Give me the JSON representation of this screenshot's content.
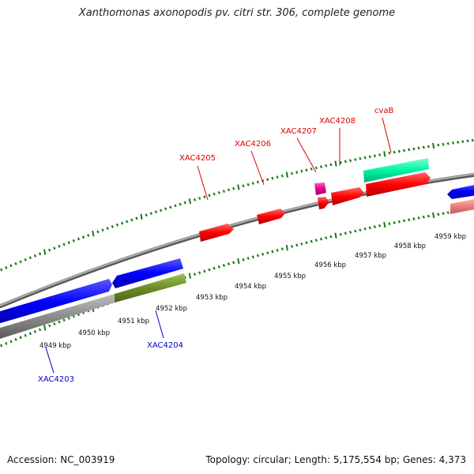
{
  "title": "Xanthomonas axonopodis pv. citri str. 306, complete genome",
  "accession": "Accession: NC_003919",
  "summary": "Topology: circular; Length: 5,175,554 bp; Genes: 4,373",
  "colors": {
    "forward_gene": "#ff0000",
    "reverse_gene": "#0000ff",
    "forward_label": "#dd0000",
    "reverse_label": "#0000cc",
    "tick": "#1a7a1a",
    "backbone": "#888888"
  },
  "kbp_ticks": [
    "4949 kbp",
    "4950 kbp",
    "4951 kbp",
    "4952 kbp",
    "4953 kbp",
    "4954 kbp",
    "4955 kbp",
    "4956 kbp",
    "4957 kbp",
    "4958 kbp",
    "4959 kbp"
  ],
  "gene_labels": [
    {
      "name": "XAC4203",
      "strand": "reverse"
    },
    {
      "name": "XAC4204",
      "strand": "reverse"
    },
    {
      "name": "XAC4205",
      "strand": "forward"
    },
    {
      "name": "XAC4206",
      "strand": "forward"
    },
    {
      "name": "XAC4207",
      "strand": "forward"
    },
    {
      "name": "XAC4208",
      "strand": "forward"
    },
    {
      "name": "cvaB",
      "strand": "forward"
    }
  ]
}
